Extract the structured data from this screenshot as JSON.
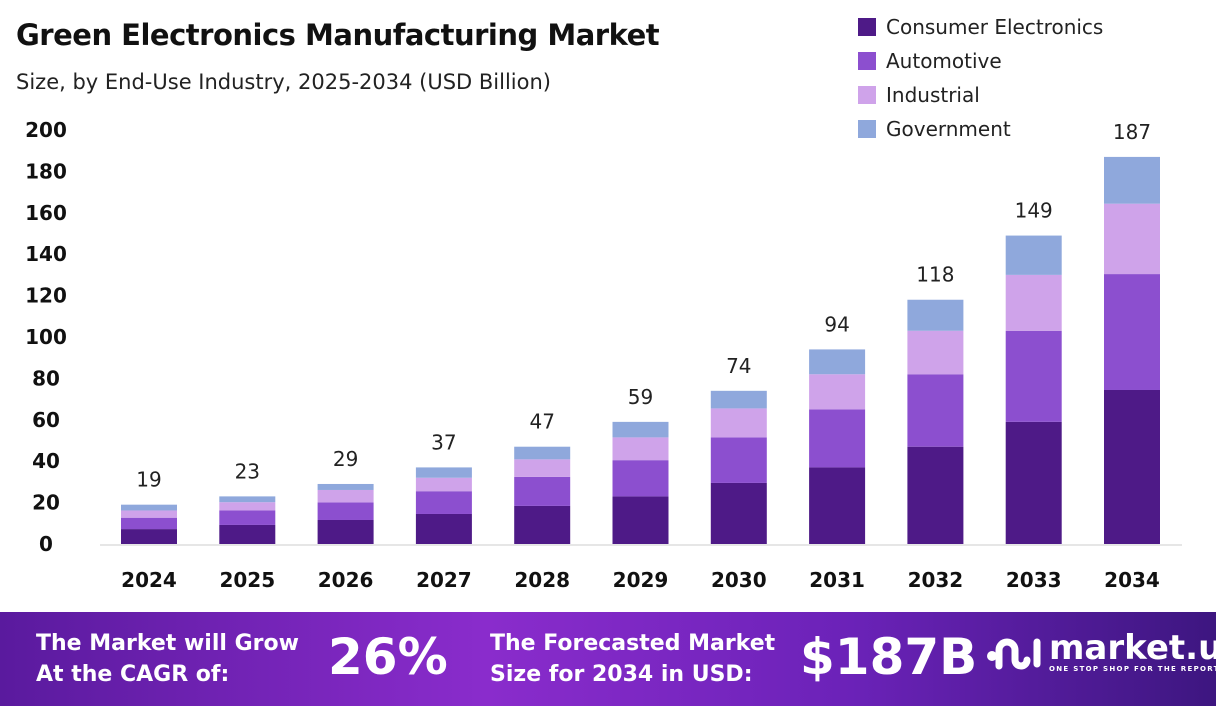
{
  "chart_data": {
    "type": "bar",
    "stacked": true,
    "title": "Green Electronics Manufacturing Market",
    "subtitle": "Size, by End-Use Industry, 2025-2034 (USD Billion)",
    "categories": [
      "2024",
      "2025",
      "2026",
      "2027",
      "2028",
      "2029",
      "2030",
      "2031",
      "2032",
      "2033",
      "2034"
    ],
    "series": [
      {
        "name": "Consumer Electronics",
        "color": "#4e1a87",
        "values": [
          7.2,
          9.2,
          11.6,
          14.5,
          18.4,
          23,
          29.5,
          37,
          47,
          59,
          74.4
        ]
      },
      {
        "name": "Automotive",
        "color": "#8c4fcf",
        "values": [
          5.5,
          7,
          8.5,
          11,
          14,
          17.5,
          22,
          28,
          35,
          44,
          56
        ]
      },
      {
        "name": "Industrial",
        "color": "#cfa3ea",
        "values": [
          3.5,
          4,
          6,
          6.5,
          8.5,
          11,
          14,
          17,
          21,
          27,
          34
        ]
      },
      {
        "name": "Government",
        "color": "#8fa8dc",
        "values": [
          2.8,
          2.8,
          2.9,
          5,
          6.1,
          7.5,
          8.5,
          12,
          15,
          19,
          22.6
        ]
      }
    ],
    "totals": [
      "19",
      "23",
      "29",
      "37",
      "47",
      "59",
      "74",
      "94",
      "118",
      "149",
      "187"
    ],
    "yticks": [
      "0",
      "20",
      "40",
      "60",
      "80",
      "100",
      "120",
      "140",
      "160",
      "180",
      "200"
    ],
    "ylim": [
      0,
      200
    ],
    "grid": false,
    "legend_position": "top-right"
  },
  "footer": {
    "cagr_text_line1": "The Market will Grow",
    "cagr_text_line2": "At the CAGR of:",
    "cagr_value": "26%",
    "forecast_line1": "The Forecasted Market",
    "forecast_line2": "Size for 2034 in USD:",
    "forecast_value": "$187B",
    "logo_text": "market.us",
    "logo_tagline": "ONE STOP SHOP FOR THE REPORTS"
  }
}
